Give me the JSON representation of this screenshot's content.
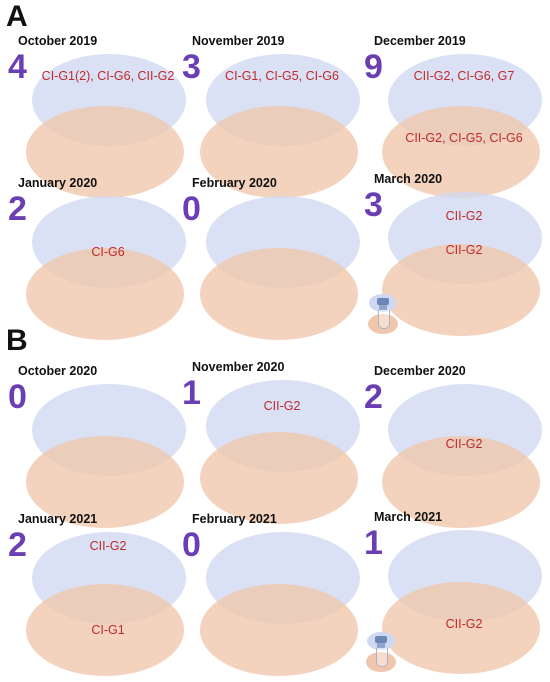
{
  "panels": [
    {
      "letter": "A",
      "cells": [
        {
          "month": "October 2019",
          "count": "4",
          "top_text": "CI-G1(2), CI-G6, CII-G2",
          "bottom_text": ""
        },
        {
          "month": "November 2019",
          "count": "3",
          "top_text": "CI-G1, CI-G5, CI-G6",
          "bottom_text": ""
        },
        {
          "month": "December 2019",
          "count": "9",
          "top_text": "CII-G2, CI-G6, G7",
          "bottom_text": "CII-G2, CI-G5, CI-G6"
        },
        {
          "month": "January 2020",
          "count": "2",
          "top_text": "",
          "bottom_text": "CI-G6"
        },
        {
          "month": "February 2020",
          "count": "0",
          "top_text": "",
          "bottom_text": ""
        },
        {
          "month": "March 2020",
          "count": "3",
          "top_text": "CII-G2",
          "bottom_text": "CII-G2"
        }
      ]
    },
    {
      "letter": "B",
      "cells": [
        {
          "month": "October 2020",
          "count": "0",
          "top_text": "",
          "bottom_text": ""
        },
        {
          "month": "November 2020",
          "count": "1",
          "top_text": "CII-G2",
          "bottom_text": ""
        },
        {
          "month": "December 2020",
          "count": "2",
          "top_text": "",
          "bottom_text": "CII-G2"
        },
        {
          "month": "January 2021",
          "count": "2",
          "top_text": "CII-G2",
          "bottom_text": "CI-G1"
        },
        {
          "month": "February 2021",
          "count": "0",
          "top_text": "",
          "bottom_text": ""
        },
        {
          "month": "March 2021",
          "count": "1",
          "top_text": "",
          "bottom_text": "CII-G2"
        }
      ]
    }
  ],
  "icons": [
    "sample-vial-icon",
    "sample-vial-icon"
  ],
  "colors": {
    "count": "#6a3fb4",
    "genotype_text": "#c0292b",
    "upper_oval": "#cfd8f1",
    "lower_oval": "#f0c6ac"
  }
}
